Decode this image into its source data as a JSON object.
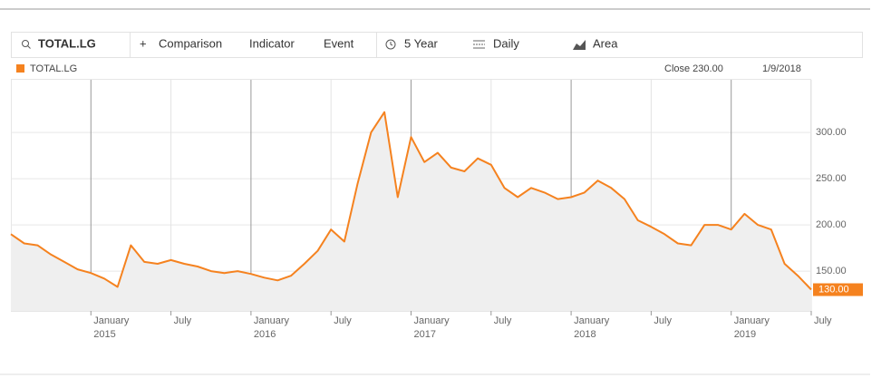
{
  "toolbar": {
    "search": "TOTAL.LG",
    "buttons": [
      "Comparison",
      "Indicator",
      "Event",
      "5 Year",
      "Daily",
      "Area"
    ]
  },
  "readout": {
    "close": "Close 230.00",
    "date": "1/9/2018"
  },
  "chart_data": {
    "type": "area",
    "x": [
      "2014-07",
      "2014-08",
      "2014-09",
      "2014-10",
      "2014-11",
      "2014-12",
      "2015-01",
      "2015-02",
      "2015-03",
      "2015-04",
      "2015-05",
      "2015-06",
      "2015-07",
      "2015-08",
      "2015-09",
      "2015-10",
      "2015-11",
      "2015-12",
      "2016-01",
      "2016-02",
      "2016-03",
      "2016-04",
      "2016-05",
      "2016-06",
      "2016-07",
      "2016-08",
      "2016-09",
      "2016-10",
      "2016-11",
      "2016-12",
      "2017-01",
      "2017-02",
      "2017-03",
      "2017-04",
      "2017-05",
      "2017-06",
      "2017-07",
      "2017-08",
      "2017-09",
      "2017-10",
      "2017-11",
      "2017-12",
      "2018-01",
      "2018-02",
      "2018-03",
      "2018-04",
      "2018-05",
      "2018-06",
      "2018-07",
      "2018-08",
      "2018-09",
      "2018-10",
      "2018-11",
      "2018-12",
      "2019-01",
      "2019-02",
      "2019-03",
      "2019-04",
      "2019-05",
      "2019-06",
      "2019-07"
    ],
    "series": [
      {
        "name": "TOTAL.LG",
        "color": "#f5821f",
        "values": [
          190,
          180,
          178,
          168,
          160,
          152,
          148,
          142,
          133,
          178,
          160,
          158,
          162,
          158,
          155,
          150,
          148,
          150,
          147,
          143,
          140,
          145,
          158,
          172,
          195,
          182,
          245,
          300,
          322,
          230,
          295,
          268,
          278,
          262,
          258,
          272,
          265,
          240,
          230,
          240,
          235,
          228,
          230,
          235,
          248,
          240,
          228,
          205,
          198,
          190,
          180,
          178,
          200,
          200,
          195,
          212,
          200,
          195,
          158,
          145,
          130
        ]
      }
    ],
    "last_price_label": "130.00",
    "xlim": [
      "2014-07",
      "2019-07"
    ],
    "xticks": [
      {
        "value": "2015-01",
        "label": "January"
      },
      {
        "value": "2015-07",
        "label": "July"
      },
      {
        "value": "2016-01",
        "label": "January"
      },
      {
        "value": "2016-07",
        "label": "July"
      },
      {
        "value": "2017-01",
        "label": "January"
      },
      {
        "value": "2017-07",
        "label": "July"
      },
      {
        "value": "2018-01",
        "label": "January"
      },
      {
        "value": "2018-07",
        "label": "July"
      },
      {
        "value": "2019-01",
        "label": "January"
      },
      {
        "value": "2019-07",
        "label": "July"
      }
    ],
    "xtick_years": [
      "2015",
      null,
      "2016",
      null,
      "2017",
      null,
      "2018",
      null,
      "2019",
      null
    ],
    "ylim": [
      107,
      357
    ],
    "yticks": [
      {
        "value": 150,
        "label": "150.00"
      },
      {
        "value": 200,
        "label": "200.00"
      },
      {
        "value": 250,
        "label": "250.00"
      },
      {
        "value": 300,
        "label": "300.00"
      }
    ],
    "grid": true
  }
}
